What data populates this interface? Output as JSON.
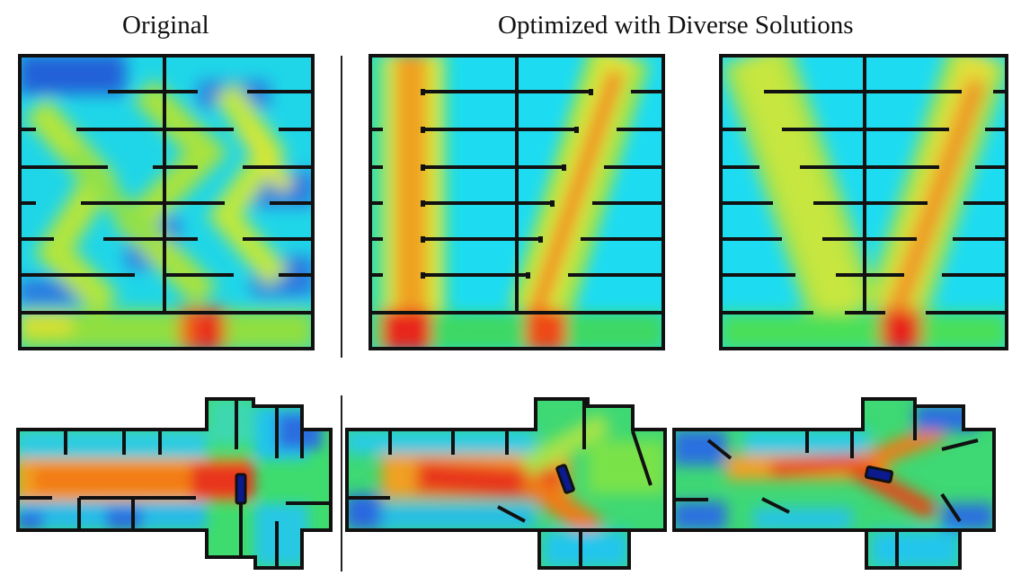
{
  "headings": {
    "original": "Original",
    "optimized": "Optimized with Diverse Solutions"
  },
  "palette": {
    "low": "#1f5fe0",
    "mid_low": "#19d6f0",
    "mid": "#3ee07a",
    "mid_high": "#d8e832",
    "high": "#f08a1a",
    "peak": "#e51c0c",
    "wall": "#111111",
    "obstacle": "#0b1a8c"
  }
}
